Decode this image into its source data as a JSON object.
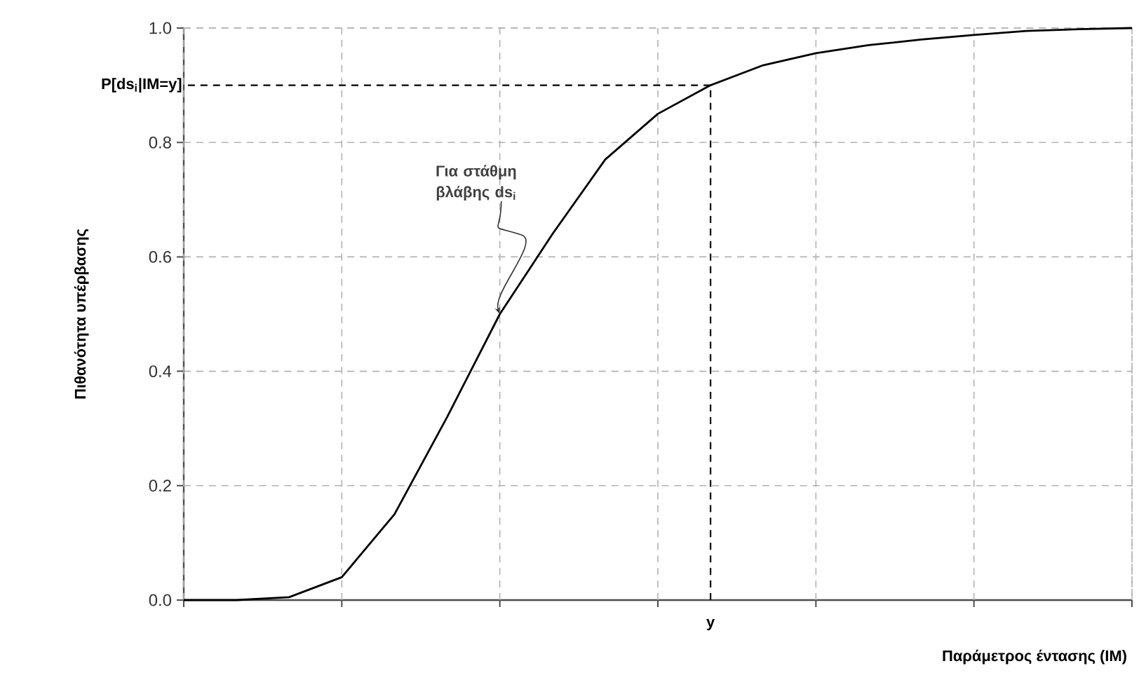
{
  "chart_data": {
    "type": "line",
    "ylabel": "Πιθανότητα  υπέρβασης",
    "xlabel": "Παράμετρος έντασης (IM)",
    "categories": [
      null,
      null,
      null,
      null,
      null,
      null,
      null,
      null,
      null,
      null,
      null,
      null,
      null,
      null,
      null,
      null,
      null,
      null,
      null
    ],
    "series": [
      {
        "color": "#000000",
        "values": [
          0,
          0,
          0.005,
          0.04,
          0.15,
          0.32,
          0.5,
          0.64,
          0.77,
          0.85,
          0.9,
          0.935,
          0.956,
          0.97,
          0.98,
          0.988,
          0.995,
          0.998,
          1.0
        ]
      }
    ],
    "ylim": [
      0,
      1
    ],
    "yticks": [
      {
        "value": 0,
        "label": "0.0"
      },
      {
        "value": 0.2,
        "label": "0.2"
      },
      {
        "value": 0.4,
        "label": "0.4"
      },
      {
        "value": 0.6,
        "label": "0.6"
      },
      {
        "value": 0.8,
        "label": "0.8"
      },
      {
        "value": 1,
        "label": "1.0"
      }
    ],
    "ref_lines": [
      {
        "axis": "y",
        "value": 0.9,
        "label": "P[ds$_{i}$|IM=y]",
        "line_style": "dashed",
        "color": "#000000"
      }
    ],
    "annotations": [
      "Για στάθμη βλάβης ds$_{i}$",
      "y"
    ],
    "grid": true,
    "marker": "none",
    "line_style": "solid"
  }
}
